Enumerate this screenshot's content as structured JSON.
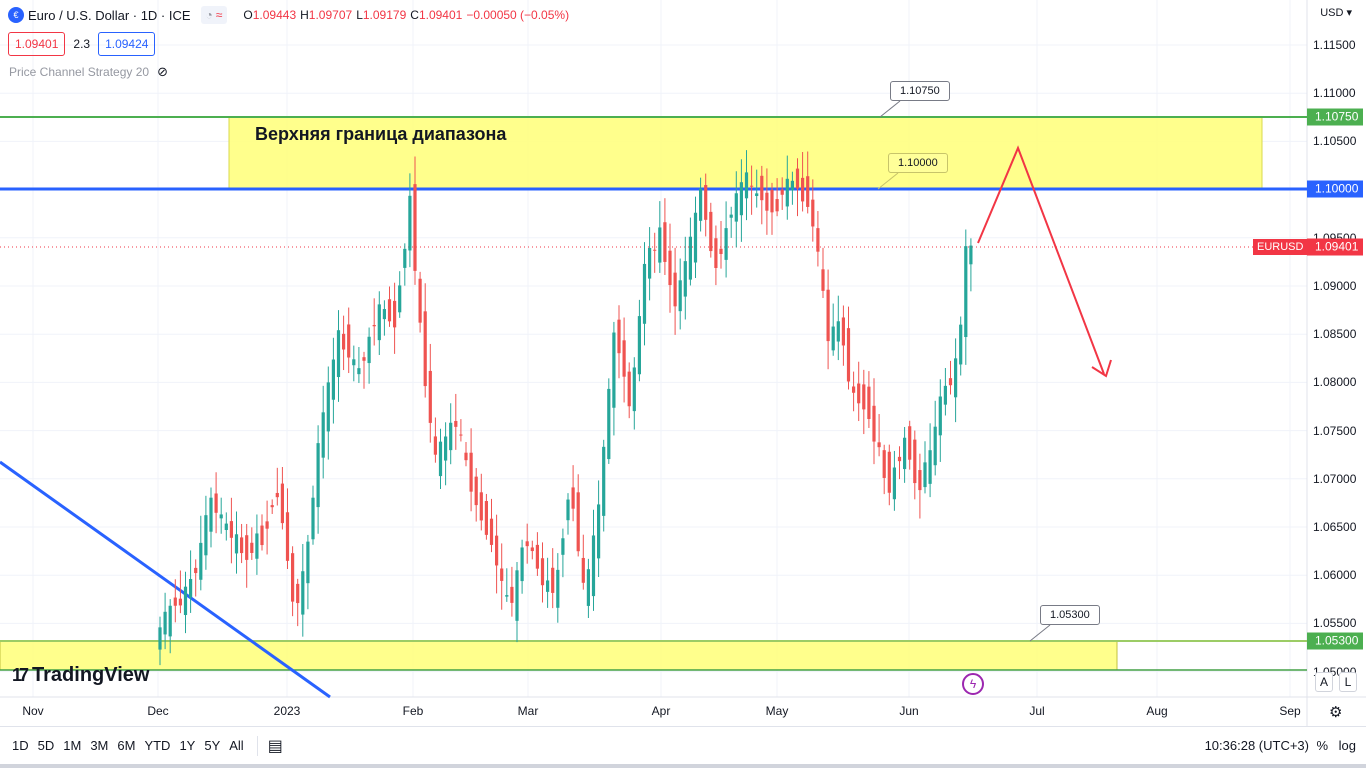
{
  "header": {
    "symbol_title": "Euro / U.S. Dollar · 1D · ICE",
    "ohlc": [
      {
        "k": "O",
        "v": "1.09443"
      },
      {
        "k": "H",
        "v": "1.09707"
      },
      {
        "k": "L",
        "v": "1.09179"
      },
      {
        "k": "C",
        "v": "1.09401"
      },
      {
        "k": "",
        "v": "−0.00050 (−0.05%)"
      }
    ],
    "sell_price": "1.09401",
    "spread": "2.3",
    "buy_price": "1.09424",
    "indicator_name": "Price Channel Strategy 20",
    "currency": "USD"
  },
  "price_axis": {
    "ticks": [
      "1.11500",
      "1.11000",
      "1.10500",
      "1.10000",
      "1.09500",
      "1.09000",
      "1.08500",
      "1.08000",
      "1.07500",
      "1.07000",
      "1.06500",
      "1.06000",
      "1.05500",
      "1.05000"
    ],
    "labels": {
      "upper": "1.10750",
      "blue": "1.10000",
      "last": "1.09401",
      "lower": "1.05300"
    },
    "symbol_badge": "EURUSD"
  },
  "time_axis": [
    "Nov",
    "Dec",
    "2023",
    "Feb",
    "Mar",
    "Apr",
    "May",
    "Jun",
    "Jul",
    "Aug",
    "Sep"
  ],
  "drawings": {
    "zone_text": "Верхняя граница диапазона",
    "callout_upper": "1.10750",
    "callout_mid": "1.10000",
    "callout_lower": "1.05300"
  },
  "brand": "TradingView",
  "buttons": {
    "auto": "A",
    "log_scale": "L"
  },
  "bottom_bar": {
    "ranges": [
      "1D",
      "5D",
      "1M",
      "3M",
      "6M",
      "YTD",
      "1Y",
      "5Y",
      "All"
    ],
    "clock": "10:36:28 (UTC+3)",
    "percent": "%",
    "log": "log"
  },
  "colors": {
    "up": "#26a69a",
    "down": "#ef5350",
    "zone": "#ffff80",
    "blue_line": "#2962ff",
    "green_line": "#4caf50",
    "forecast": "#f23645"
  }
}
